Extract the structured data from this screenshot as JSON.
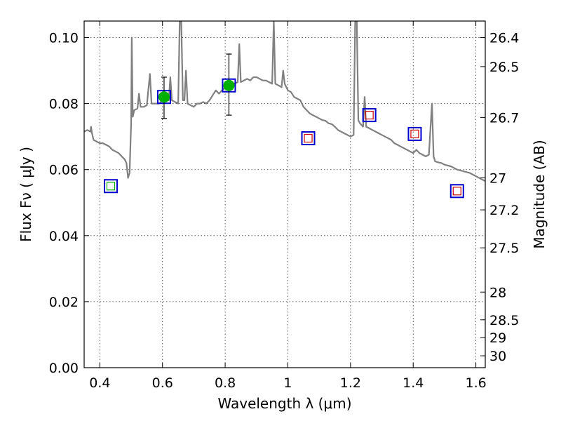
{
  "chart_data": {
    "type": "scatter",
    "xlabel": "Wavelength  λ (μm)",
    "ylabel": "Flux  Fν  ( μJy )",
    "y2label": "Magnitude (AB)",
    "xlim": [
      0.35,
      1.63
    ],
    "ylim": [
      0.0,
      0.105
    ],
    "grid": true,
    "x_ticks": [
      0.4,
      0.6,
      0.8,
      1.0,
      1.2,
      1.4,
      1.6
    ],
    "x_tick_labels": [
      "0.4",
      "0.6",
      "0.8",
      "1",
      "1.2",
      "1.4",
      "1.6"
    ],
    "y_ticks": [
      0.0,
      0.02,
      0.04,
      0.06,
      0.08,
      0.1
    ],
    "y_tick_labels": [
      "0.00",
      "0.02",
      "0.04",
      "0.06",
      "0.08",
      "0.10"
    ],
    "magnitude_ticks": [
      {
        "label": "26.4",
        "flux": 0.1
      },
      {
        "label": "26.5",
        "flux": 0.0912
      },
      {
        "label": "26.7",
        "flux": 0.0758
      },
      {
        "label": "27",
        "flux": 0.0575
      },
      {
        "label": "27.2",
        "flux": 0.0478
      },
      {
        "label": "27.5",
        "flux": 0.0363
      },
      {
        "label": "28",
        "flux": 0.0229
      },
      {
        "label": "28.5",
        "flux": 0.0145
      },
      {
        "label": "29",
        "flux": 0.0091
      },
      {
        "label": "30",
        "flux": 0.0036
      }
    ],
    "series": [
      {
        "kind": "model-spectrum",
        "color": "#808080",
        "points": [
          [
            0.35,
            0.0715
          ],
          [
            0.36,
            0.072
          ],
          [
            0.37,
            0.0715
          ],
          [
            0.372,
            0.073
          ],
          [
            0.375,
            0.071
          ],
          [
            0.38,
            0.069
          ],
          [
            0.39,
            0.0685
          ],
          [
            0.4,
            0.068
          ],
          [
            0.41,
            0.068
          ],
          [
            0.42,
            0.0675
          ],
          [
            0.43,
            0.067
          ],
          [
            0.44,
            0.066
          ],
          [
            0.45,
            0.0655
          ],
          [
            0.46,
            0.065
          ],
          [
            0.47,
            0.064
          ],
          [
            0.48,
            0.063
          ],
          [
            0.485,
            0.062
          ],
          [
            0.49,
            0.0575
          ],
          [
            0.495,
            0.059
          ],
          [
            0.5,
            0.074
          ],
          [
            0.502,
            0.1
          ],
          [
            0.505,
            0.076
          ],
          [
            0.51,
            0.078
          ],
          [
            0.52,
            0.0785
          ],
          [
            0.525,
            0.083
          ],
          [
            0.53,
            0.079
          ],
          [
            0.54,
            0.079
          ],
          [
            0.55,
            0.0795
          ],
          [
            0.56,
            0.089
          ],
          [
            0.565,
            0.08
          ],
          [
            0.58,
            0.08
          ],
          [
            0.59,
            0.08
          ],
          [
            0.6,
            0.081
          ],
          [
            0.61,
            0.082
          ],
          [
            0.62,
            0.081
          ],
          [
            0.625,
            0.088
          ],
          [
            0.63,
            0.081
          ],
          [
            0.64,
            0.0805
          ],
          [
            0.65,
            0.08
          ],
          [
            0.655,
            0.105
          ],
          [
            0.66,
            0.105
          ],
          [
            0.665,
            0.081
          ],
          [
            0.67,
            0.081
          ],
          [
            0.675,
            0.09
          ],
          [
            0.68,
            0.08
          ],
          [
            0.69,
            0.0795
          ],
          [
            0.7,
            0.079
          ],
          [
            0.71,
            0.08
          ],
          [
            0.72,
            0.08
          ],
          [
            0.73,
            0.0805
          ],
          [
            0.74,
            0.08
          ],
          [
            0.75,
            0.081
          ],
          [
            0.76,
            0.0825
          ],
          [
            0.77,
            0.084
          ],
          [
            0.78,
            0.083
          ],
          [
            0.79,
            0.084
          ],
          [
            0.8,
            0.085
          ],
          [
            0.81,
            0.086
          ],
          [
            0.82,
            0.0865
          ],
          [
            0.83,
            0.086
          ],
          [
            0.84,
            0.0865
          ],
          [
            0.845,
            0.098
          ],
          [
            0.85,
            0.0865
          ],
          [
            0.86,
            0.087
          ],
          [
            0.87,
            0.0875
          ],
          [
            0.88,
            0.087
          ],
          [
            0.89,
            0.088
          ],
          [
            0.9,
            0.088
          ],
          [
            0.91,
            0.0875
          ],
          [
            0.92,
            0.087
          ],
          [
            0.93,
            0.087
          ],
          [
            0.94,
            0.0865
          ],
          [
            0.95,
            0.086
          ],
          [
            0.955,
            0.105
          ],
          [
            0.96,
            0.086
          ],
          [
            0.97,
            0.0855
          ],
          [
            0.98,
            0.085
          ],
          [
            0.985,
            0.09
          ],
          [
            0.99,
            0.086
          ],
          [
            1.0,
            0.084
          ],
          [
            1.01,
            0.0835
          ],
          [
            1.02,
            0.082
          ],
          [
            1.03,
            0.0815
          ],
          [
            1.04,
            0.081
          ],
          [
            1.05,
            0.079
          ],
          [
            1.06,
            0.078
          ],
          [
            1.07,
            0.077
          ],
          [
            1.08,
            0.0765
          ],
          [
            1.09,
            0.076
          ],
          [
            1.1,
            0.0755
          ],
          [
            1.11,
            0.075
          ],
          [
            1.12,
            0.0748
          ],
          [
            1.13,
            0.074
          ],
          [
            1.14,
            0.0738
          ],
          [
            1.15,
            0.073
          ],
          [
            1.16,
            0.072
          ],
          [
            1.17,
            0.0715
          ],
          [
            1.18,
            0.071
          ],
          [
            1.19,
            0.0705
          ],
          [
            1.2,
            0.07
          ],
          [
            1.21,
            0.0705
          ],
          [
            1.215,
            0.105
          ],
          [
            1.22,
            0.105
          ],
          [
            1.225,
            0.075
          ],
          [
            1.23,
            0.074
          ],
          [
            1.24,
            0.073
          ],
          [
            1.245,
            0.082
          ],
          [
            1.25,
            0.073
          ],
          [
            1.26,
            0.0725
          ],
          [
            1.27,
            0.072
          ],
          [
            1.28,
            0.0715
          ],
          [
            1.29,
            0.071
          ],
          [
            1.3,
            0.0705
          ],
          [
            1.31,
            0.07
          ],
          [
            1.32,
            0.0695
          ],
          [
            1.33,
            0.069
          ],
          [
            1.34,
            0.068
          ],
          [
            1.35,
            0.0675
          ],
          [
            1.36,
            0.067
          ],
          [
            1.37,
            0.0665
          ],
          [
            1.38,
            0.066
          ],
          [
            1.39,
            0.0655
          ],
          [
            1.4,
            0.065
          ],
          [
            1.41,
            0.066
          ],
          [
            1.42,
            0.065
          ],
          [
            1.43,
            0.0645
          ],
          [
            1.44,
            0.064
          ],
          [
            1.45,
            0.0645
          ],
          [
            1.46,
            0.08
          ],
          [
            1.465,
            0.064
          ],
          [
            1.47,
            0.0625
          ],
          [
            1.48,
            0.0622
          ],
          [
            1.49,
            0.062
          ],
          [
            1.5,
            0.0615
          ],
          [
            1.52,
            0.061
          ],
          [
            1.54,
            0.06
          ],
          [
            1.56,
            0.0595
          ],
          [
            1.58,
            0.059
          ],
          [
            1.6,
            0.058
          ],
          [
            1.62,
            0.057
          ],
          [
            1.63,
            0.0565
          ]
        ]
      },
      {
        "kind": "observed",
        "marker": "circle",
        "color": "#00b000",
        "points": [
          {
            "x": 0.605,
            "y": 0.082,
            "err_low": 0.0755,
            "err_high": 0.088
          },
          {
            "x": 0.812,
            "y": 0.0855,
            "err_low": 0.0765,
            "err_high": 0.095
          }
        ]
      },
      {
        "kind": "model-photometry",
        "marker": "square",
        "edge_color": "#0000cc",
        "inner_colors": [
          "#00b000",
          "#cc0000"
        ],
        "points": [
          {
            "x": 0.435,
            "y": 0.055,
            "inner": "green"
          },
          {
            "x": 0.605,
            "y": 0.082,
            "inner": "green"
          },
          {
            "x": 0.812,
            "y": 0.0855,
            "inner": "green"
          },
          {
            "x": 1.065,
            "y": 0.0695,
            "inner": "red"
          },
          {
            "x": 1.26,
            "y": 0.0765,
            "inner": "red"
          },
          {
            "x": 1.405,
            "y": 0.0708,
            "inner": "red"
          },
          {
            "x": 1.54,
            "y": 0.0535,
            "inner": "red"
          }
        ]
      }
    ]
  }
}
